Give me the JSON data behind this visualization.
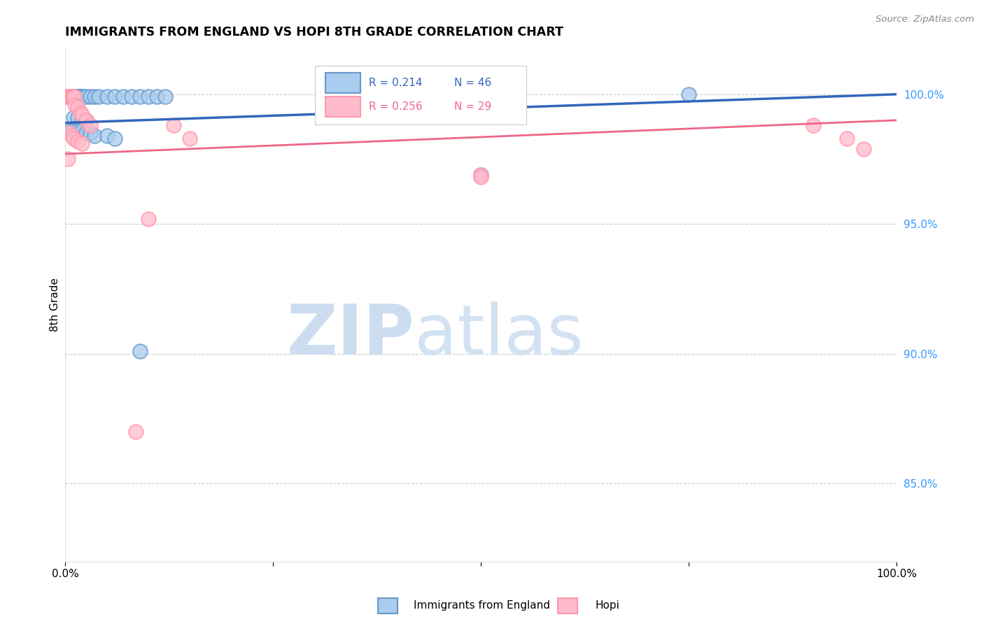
{
  "title": "IMMIGRANTS FROM ENGLAND VS HOPI 8TH GRADE CORRELATION CHART",
  "source_text": "Source: ZipAtlas.com",
  "ylabel": "8th Grade",
  "y_tick_labels": [
    "85.0%",
    "90.0%",
    "95.0%",
    "100.0%"
  ],
  "y_tick_values": [
    0.85,
    0.9,
    0.95,
    1.0
  ],
  "xlim": [
    0.0,
    1.0
  ],
  "ylim": [
    0.82,
    1.018
  ],
  "legend_blue_r": "R = 0.214",
  "legend_blue_n": "N = 46",
  "legend_pink_r": "R = 0.256",
  "legend_pink_n": "N = 29",
  "blue_face_color": "#AACCEE",
  "blue_edge_color": "#6699CC",
  "pink_face_color": "#FFBBCC",
  "pink_edge_color": "#FF99AA",
  "blue_line_color": "#3366BB",
  "pink_line_color": "#EE6688",
  "blue_scatter": [
    [
      0.003,
      0.999
    ],
    [
      0.005,
      0.999
    ],
    [
      0.006,
      0.999
    ],
    [
      0.007,
      0.999
    ],
    [
      0.008,
      0.999
    ],
    [
      0.009,
      0.999
    ],
    [
      0.01,
      0.999
    ],
    [
      0.011,
      0.999
    ],
    [
      0.012,
      0.999
    ],
    [
      0.013,
      0.999
    ],
    [
      0.014,
      0.999
    ],
    [
      0.015,
      0.999
    ],
    [
      0.016,
      0.999
    ],
    [
      0.017,
      0.999
    ],
    [
      0.018,
      0.999
    ],
    [
      0.019,
      0.999
    ],
    [
      0.02,
      0.999
    ],
    [
      0.022,
      0.999
    ],
    [
      0.025,
      0.999
    ],
    [
      0.03,
      0.999
    ],
    [
      0.035,
      0.999
    ],
    [
      0.04,
      0.999
    ],
    [
      0.05,
      0.999
    ],
    [
      0.06,
      0.999
    ],
    [
      0.07,
      0.999
    ],
    [
      0.08,
      0.999
    ],
    [
      0.09,
      0.999
    ],
    [
      0.1,
      0.999
    ],
    [
      0.11,
      0.999
    ],
    [
      0.12,
      0.999
    ],
    [
      0.01,
      0.991
    ],
    [
      0.015,
      0.991
    ],
    [
      0.02,
      0.99
    ],
    [
      0.025,
      0.99
    ],
    [
      0.005,
      0.986
    ],
    [
      0.01,
      0.986
    ],
    [
      0.015,
      0.986
    ],
    [
      0.02,
      0.986
    ],
    [
      0.025,
      0.985
    ],
    [
      0.03,
      0.985
    ],
    [
      0.035,
      0.984
    ],
    [
      0.05,
      0.984
    ],
    [
      0.06,
      0.983
    ],
    [
      0.09,
      0.901
    ],
    [
      0.5,
      0.969
    ],
    [
      0.75,
      1.0
    ]
  ],
  "pink_scatter": [
    [
      0.003,
      0.999
    ],
    [
      0.005,
      0.999
    ],
    [
      0.006,
      0.999
    ],
    [
      0.007,
      0.999
    ],
    [
      0.008,
      0.999
    ],
    [
      0.009,
      0.999
    ],
    [
      0.01,
      0.999
    ],
    [
      0.011,
      0.999
    ],
    [
      0.012,
      0.996
    ],
    [
      0.015,
      0.995
    ],
    [
      0.018,
      0.993
    ],
    [
      0.02,
      0.992
    ],
    [
      0.025,
      0.99
    ],
    [
      0.03,
      0.988
    ],
    [
      0.005,
      0.985
    ],
    [
      0.008,
      0.984
    ],
    [
      0.01,
      0.983
    ],
    [
      0.015,
      0.982
    ],
    [
      0.02,
      0.981
    ],
    [
      0.003,
      0.975
    ],
    [
      0.5,
      0.969
    ],
    [
      0.5,
      0.968
    ],
    [
      0.1,
      0.952
    ],
    [
      0.9,
      0.988
    ],
    [
      0.94,
      0.983
    ],
    [
      0.96,
      0.979
    ],
    [
      0.085,
      0.87
    ],
    [
      0.13,
      0.988
    ],
    [
      0.15,
      0.983
    ]
  ],
  "blue_trend": [
    0.0,
    1.0,
    0.989,
    1.0
  ],
  "pink_trend": [
    0.0,
    1.0,
    0.977,
    0.99
  ]
}
